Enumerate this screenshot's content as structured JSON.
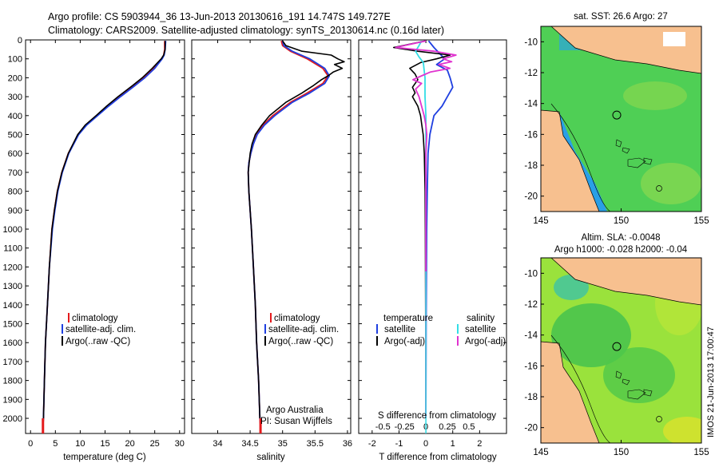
{
  "header": {
    "line1": "Argo profile: CS 5903944_36 13-Jun-2013 20130616_191 14.747S 149.727E",
    "line2": "Climatology: CARS2009. Satellite-adjusted climatology: synTS_20130614.nc (0.16d later)"
  },
  "colors": {
    "climatology": "#e41a1c",
    "satellite": "#1f3fe0",
    "argo": "#000000",
    "sal_satellite": "#33dde6",
    "sal_argo": "#e033cf",
    "land": "#f7c08f"
  },
  "chart_data": [
    {
      "type": "line",
      "id": "temperature",
      "xlabel": "temperature (deg C)",
      "ylabel": "",
      "xlim": [
        -1,
        31
      ],
      "ylim": [
        2080,
        0
      ],
      "xticks": [
        0,
        5,
        10,
        15,
        20,
        25,
        30
      ],
      "yticks": [
        0,
        100,
        200,
        300,
        400,
        500,
        600,
        700,
        800,
        900,
        1000,
        1100,
        1200,
        1300,
        1400,
        1500,
        1600,
        1700,
        1800,
        1900,
        2000
      ],
      "legend": [
        "climatology",
        "satellite-adj. clim.",
        "Argo(..raw -QC)"
      ],
      "series": [
        {
          "name": "climatology",
          "color": "#e41a1c",
          "depth": [
            5,
            50,
            80,
            100,
            150,
            200,
            250,
            300,
            350,
            400,
            450,
            500,
            600,
            700,
            800,
            900,
            1000,
            1200,
            1400,
            1600,
            1800,
            2000,
            2040
          ],
          "values": [
            27.0,
            27.0,
            26.8,
            26.4,
            24.8,
            22.8,
            20.4,
            18.0,
            15.6,
            13.4,
            11.2,
            9.6,
            7.6,
            6.3,
            5.4,
            4.8,
            4.3,
            3.8,
            3.4,
            3.0,
            2.8,
            2.6,
            2.5
          ]
        },
        {
          "name": "satellite-adj. clim.",
          "color": "#1f3fe0",
          "depth": [
            5,
            50,
            80,
            100,
            150,
            200,
            250,
            300,
            350,
            400,
            450,
            500,
            600,
            700,
            800,
            900,
            1000,
            1200,
            1400,
            1600,
            1800,
            2000,
            2040
          ],
          "values": [
            27.2,
            27.1,
            26.9,
            26.5,
            25.0,
            23.0,
            20.6,
            18.1,
            15.7,
            13.5,
            11.3,
            9.7,
            7.7,
            6.4,
            5.5,
            4.9,
            4.4,
            3.8,
            3.4,
            3.0,
            2.8,
            2.6,
            2.5
          ]
        },
        {
          "name": "Argo(..raw -QC)",
          "color": "#000000",
          "depth": [
            5,
            50,
            80,
            100,
            150,
            200,
            240,
            300,
            350,
            400,
            450,
            500,
            600,
            700,
            800,
            900,
            1000,
            1200,
            1400,
            1600,
            1800,
            2000
          ],
          "values": [
            27.1,
            27.1,
            26.8,
            26.3,
            24.5,
            22.5,
            20.6,
            17.6,
            15.3,
            13.2,
            11.0,
            9.5,
            7.6,
            6.3,
            5.4,
            4.8,
            4.3,
            3.8,
            3.4,
            3.0,
            2.8,
            2.6
          ]
        }
      ]
    },
    {
      "type": "line",
      "id": "salinity",
      "xlabel": "salinity",
      "ylabel": "",
      "xlim": [
        33.6,
        36.05
      ],
      "ylim": [
        2080,
        0
      ],
      "xticks": [
        34,
        34.5,
        35,
        35.5,
        36
      ],
      "legend": [
        "climatology",
        "satellite-adj. clim.",
        "Argo(..raw -QC)"
      ],
      "annotation_line1": "Argo Australia",
      "annotation_line2": "PI: Susan Wijffels",
      "series": [
        {
          "name": "climatology",
          "color": "#e41a1c",
          "depth": [
            5,
            30,
            60,
            100,
            150,
            190,
            230,
            280,
            330,
            400,
            450,
            500,
            550,
            600,
            650,
            700,
            800,
            900,
            1000,
            1200,
            1400,
            1600,
            1800,
            2000,
            2040
          ],
          "values": [
            34.98,
            35.0,
            35.12,
            35.38,
            35.62,
            35.7,
            35.62,
            35.38,
            35.12,
            34.85,
            34.7,
            34.6,
            34.55,
            34.51,
            34.48,
            34.47,
            34.48,
            34.5,
            34.52,
            34.55,
            34.58,
            34.6,
            34.63,
            34.65,
            34.66
          ]
        },
        {
          "name": "satellite-adj. clim.",
          "color": "#1f3fe0",
          "depth": [
            5,
            30,
            60,
            100,
            150,
            190,
            230,
            280,
            330,
            400,
            450,
            500,
            550,
            600,
            650,
            700,
            800,
            900,
            1000,
            1200,
            1400,
            1600,
            1800,
            2000,
            2040
          ],
          "values": [
            35.0,
            35.02,
            35.15,
            35.42,
            35.65,
            35.72,
            35.65,
            35.42,
            35.15,
            34.88,
            34.72,
            34.61,
            34.55,
            34.51,
            34.48,
            34.47,
            34.48,
            34.5,
            34.52,
            34.55,
            34.58,
            34.6,
            34.63,
            34.65,
            34.66
          ]
        },
        {
          "name": "Argo(..raw -QC)",
          "color": "#000000",
          "depth": [
            5,
            30,
            60,
            80,
            100,
            115,
            130,
            150,
            170,
            190,
            210,
            240,
            280,
            330,
            400,
            450,
            500,
            550,
            600,
            700,
            800,
            1000,
            1200,
            1400,
            1600,
            1800,
            2000
          ],
          "values": [
            35.0,
            35.05,
            35.3,
            35.75,
            35.85,
            35.95,
            35.8,
            35.92,
            35.78,
            35.7,
            35.6,
            35.48,
            35.3,
            35.05,
            34.8,
            34.68,
            34.58,
            34.53,
            34.5,
            34.47,
            34.48,
            34.52,
            34.55,
            34.58,
            34.6,
            34.63,
            34.65
          ]
        }
      ]
    },
    {
      "type": "line",
      "id": "differences",
      "xlabel": "T difference from climatology",
      "ylabel": "",
      "xlim": [
        -2.5,
        3.0
      ],
      "ylim": [
        2080,
        0
      ],
      "xticks": [
        -2,
        -1,
        0,
        1,
        2
      ],
      "top_title": "S difference from climatology",
      "s_xticks": [
        -0.5,
        -0.25,
        0,
        0.25,
        0.5
      ],
      "s_tick_labels": [
        "-0.5",
        "-0.25",
        "0",
        "0.25",
        "0.5"
      ],
      "legend_left_title": "temperature",
      "legend_right_title": "salinity",
      "legend": [
        "satellite",
        "Argo(-adj)",
        "satellite",
        "Argo(-adj)"
      ],
      "series": [
        {
          "name": "T satellite",
          "color": "#1f3fe0",
          "depth": [
            5,
            40,
            70,
            100,
            130,
            160,
            200,
            250,
            300,
            350,
            400,
            500,
            600,
            800,
            1000,
            1500,
            2000
          ],
          "values": [
            0.1,
            0.3,
            0.5,
            0.7,
            0.4,
            0.8,
            0.9,
            1.0,
            0.8,
            0.6,
            0.3,
            0.15,
            0.08,
            0.05,
            0.03,
            0.01,
            0.0
          ]
        },
        {
          "name": "T Argo(-adj)",
          "color": "#000000",
          "depth": [
            5,
            40,
            60,
            80,
            100,
            120,
            150,
            180,
            210,
            250,
            280,
            300,
            350,
            400,
            450,
            500,
            600,
            800,
            1000,
            1500,
            2000
          ],
          "values": [
            0.0,
            -1.2,
            -0.3,
            0.9,
            0.4,
            -0.2,
            -0.6,
            -0.4,
            -0.3,
            -0.5,
            -0.4,
            -0.5,
            -0.3,
            -0.2,
            -0.15,
            -0.1,
            -0.06,
            -0.03,
            -0.02,
            -0.01,
            0.0
          ]
        },
        {
          "name": "S satellite",
          "color": "#33dde6",
          "depth": [
            5,
            30,
            60,
            90,
            120,
            160,
            200,
            300,
            400,
            600,
            1000,
            2000
          ],
          "values": [
            -0.05,
            -0.08,
            -0.12,
            -0.08,
            -0.03,
            -0.02,
            -0.01,
            -0.01,
            0.0,
            0.0,
            0.0,
            0.0
          ]
        },
        {
          "name": "S Argo(-adj)",
          "color": "#e033cf",
          "depth": [
            5,
            40,
            60,
            80,
            100,
            115,
            130,
            150,
            170,
            190,
            210,
            230,
            260,
            300,
            350,
            400,
            450,
            500,
            600,
            800,
            1000,
            1500,
            2000
          ],
          "values": [
            0.0,
            -0.35,
            0.1,
            0.35,
            0.2,
            0.3,
            0.15,
            0.28,
            0.05,
            -0.05,
            -0.15,
            -0.05,
            -0.12,
            -0.08,
            -0.05,
            -0.02,
            0.0,
            0.01,
            0.0,
            0.0,
            0.0,
            0.0,
            0.0
          ]
        }
      ]
    },
    {
      "type": "heatmap",
      "id": "sst_map",
      "title": "sat. SST: 26.6  Argo: 27",
      "xlim": [
        145,
        155
      ],
      "ylim": [
        -21,
        -9
      ],
      "xticks": [
        145,
        150,
        155
      ],
      "yticks": [
        -10,
        -12,
        -14,
        -16,
        -18,
        -20
      ],
      "float_lon": 149.727,
      "float_lat": -14.747
    },
    {
      "type": "heatmap",
      "id": "sla_map",
      "title_line1": "Altim. SLA: -0.0048",
      "title_line2": "Argo h1000: -0.028  h2000: -0.04",
      "xlim": [
        145,
        155
      ],
      "ylim": [
        -21,
        -9
      ],
      "xticks": [
        145,
        150,
        155
      ],
      "yticks": [
        -10,
        -12,
        -14,
        -16,
        -18,
        -20
      ],
      "float_lon": 149.727,
      "float_lat": -14.747
    }
  ],
  "watermark": "IMOS 21-Jun-2013 17:00:47"
}
